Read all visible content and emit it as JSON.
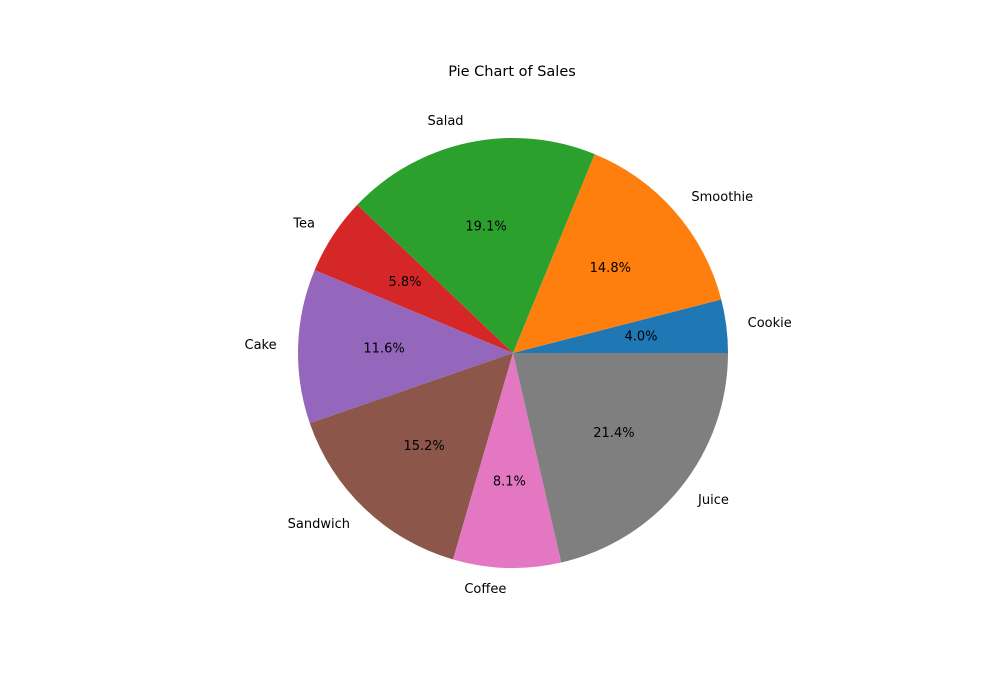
{
  "chart_data": {
    "type": "pie",
    "title": "Pie Chart of Sales",
    "labels": [
      "Cookie",
      "Smoothie",
      "Salad",
      "Tea",
      "Cake",
      "Sandwich",
      "Coffee",
      "Juice"
    ],
    "percent_labels": [
      "4.0%",
      "14.8%",
      "19.1%",
      "5.8%",
      "11.6%",
      "15.2%",
      "8.1%",
      "21.4%"
    ],
    "values": [
      4.0,
      14.8,
      19.1,
      5.8,
      11.6,
      15.2,
      8.1,
      21.4
    ],
    "colors": [
      "#1f77b4",
      "#ff7f0e",
      "#2ca02c",
      "#d62728",
      "#9467bd",
      "#8c564b",
      "#e377c2",
      "#7f7f7f"
    ],
    "start_angle": 0,
    "direction": "counterclockwise"
  }
}
